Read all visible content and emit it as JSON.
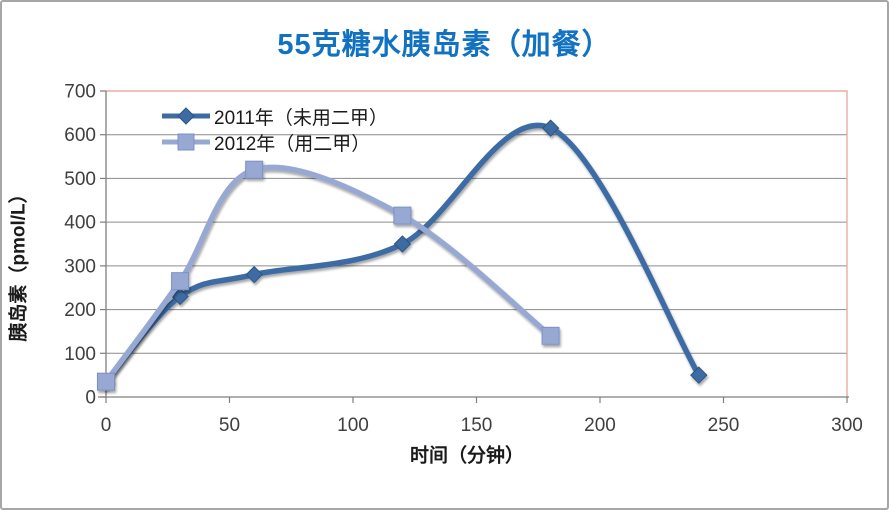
{
  "window": {
    "background": "#FFFFFF",
    "border_color": "#A6A6A6"
  },
  "chart_data": {
    "type": "line",
    "title": "55克糖水胰岛素（加餐）",
    "title_color": "#1272C2",
    "xlabel": "时间（分钟）",
    "ylabel": "胰岛素（pmol/L）",
    "xlim": [
      0,
      300
    ],
    "ylim": [
      0,
      700
    ],
    "xticks": [
      0,
      50,
      100,
      150,
      200,
      250,
      300
    ],
    "yticks": [
      0,
      100,
      200,
      300,
      400,
      500,
      600,
      700
    ],
    "grid": "horizontal-only",
    "smooth_lines": true,
    "legend_position": "top-left-inside",
    "gridline_color": "#8C8C8C",
    "plot_border_color": "#E9ABA4",
    "axis_color": "#7F7F7F",
    "tick_label_color": "#3F3F3F",
    "text_color": "#1A1A1A",
    "series": [
      {
        "name": "2011年（未用二甲）",
        "marker": "diamond",
        "color": "#3D6CA5",
        "marker_stroke": "#2E5580",
        "x": [
          0,
          30,
          60,
          120,
          180,
          240
        ],
        "values": [
          35,
          230,
          280,
          350,
          615,
          50
        ]
      },
      {
        "name": "2012年（用二甲）",
        "marker": "square",
        "color": "#97A8D3",
        "marker_stroke": "#7E90C1",
        "x": [
          0,
          30,
          60,
          120,
          180
        ],
        "values": [
          35,
          265,
          520,
          415,
          140
        ]
      }
    ]
  }
}
